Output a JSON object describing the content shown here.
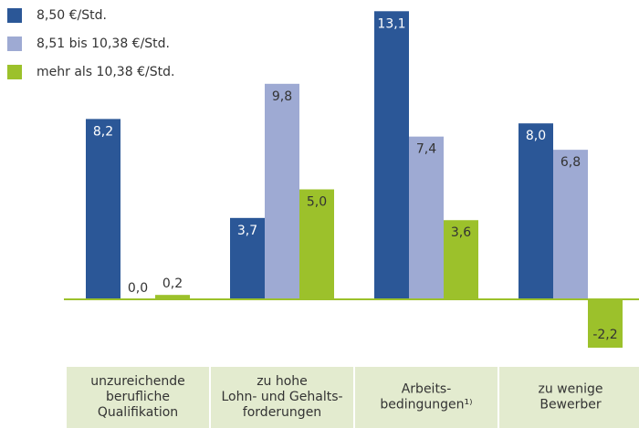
{
  "chart_data": {
    "type": "bar",
    "categories": [
      "unzureichende\nberufliche\nQualifikation",
      "zu hohe\nLohn- und Gehalts-\nforderungen",
      "Arbeits-\nbedingungen¹⁾",
      "zu wenige\nBewerber"
    ],
    "series": [
      {
        "name": "8,50 €/Std.",
        "color": "#2b5797",
        "values": [
          8.2,
          3.7,
          13.1,
          8.0
        ],
        "value_labels": [
          "8,2",
          "3,7",
          "13,1",
          "8,0"
        ]
      },
      {
        "name": "8,51 bis 10,38 €/Std.",
        "color": "#9eaad3",
        "values": [
          0.0,
          9.8,
          7.4,
          6.8
        ],
        "value_labels": [
          "0,0",
          "9,8",
          "7,4",
          "6,8"
        ]
      },
      {
        "name": "mehr als 10,38 €/Std.",
        "color": "#9cc12b",
        "values": [
          0.2,
          5.0,
          3.6,
          -2.2
        ],
        "value_labels": [
          "0,2",
          "5,0",
          "3,6",
          "-2,2"
        ]
      }
    ]
  }
}
